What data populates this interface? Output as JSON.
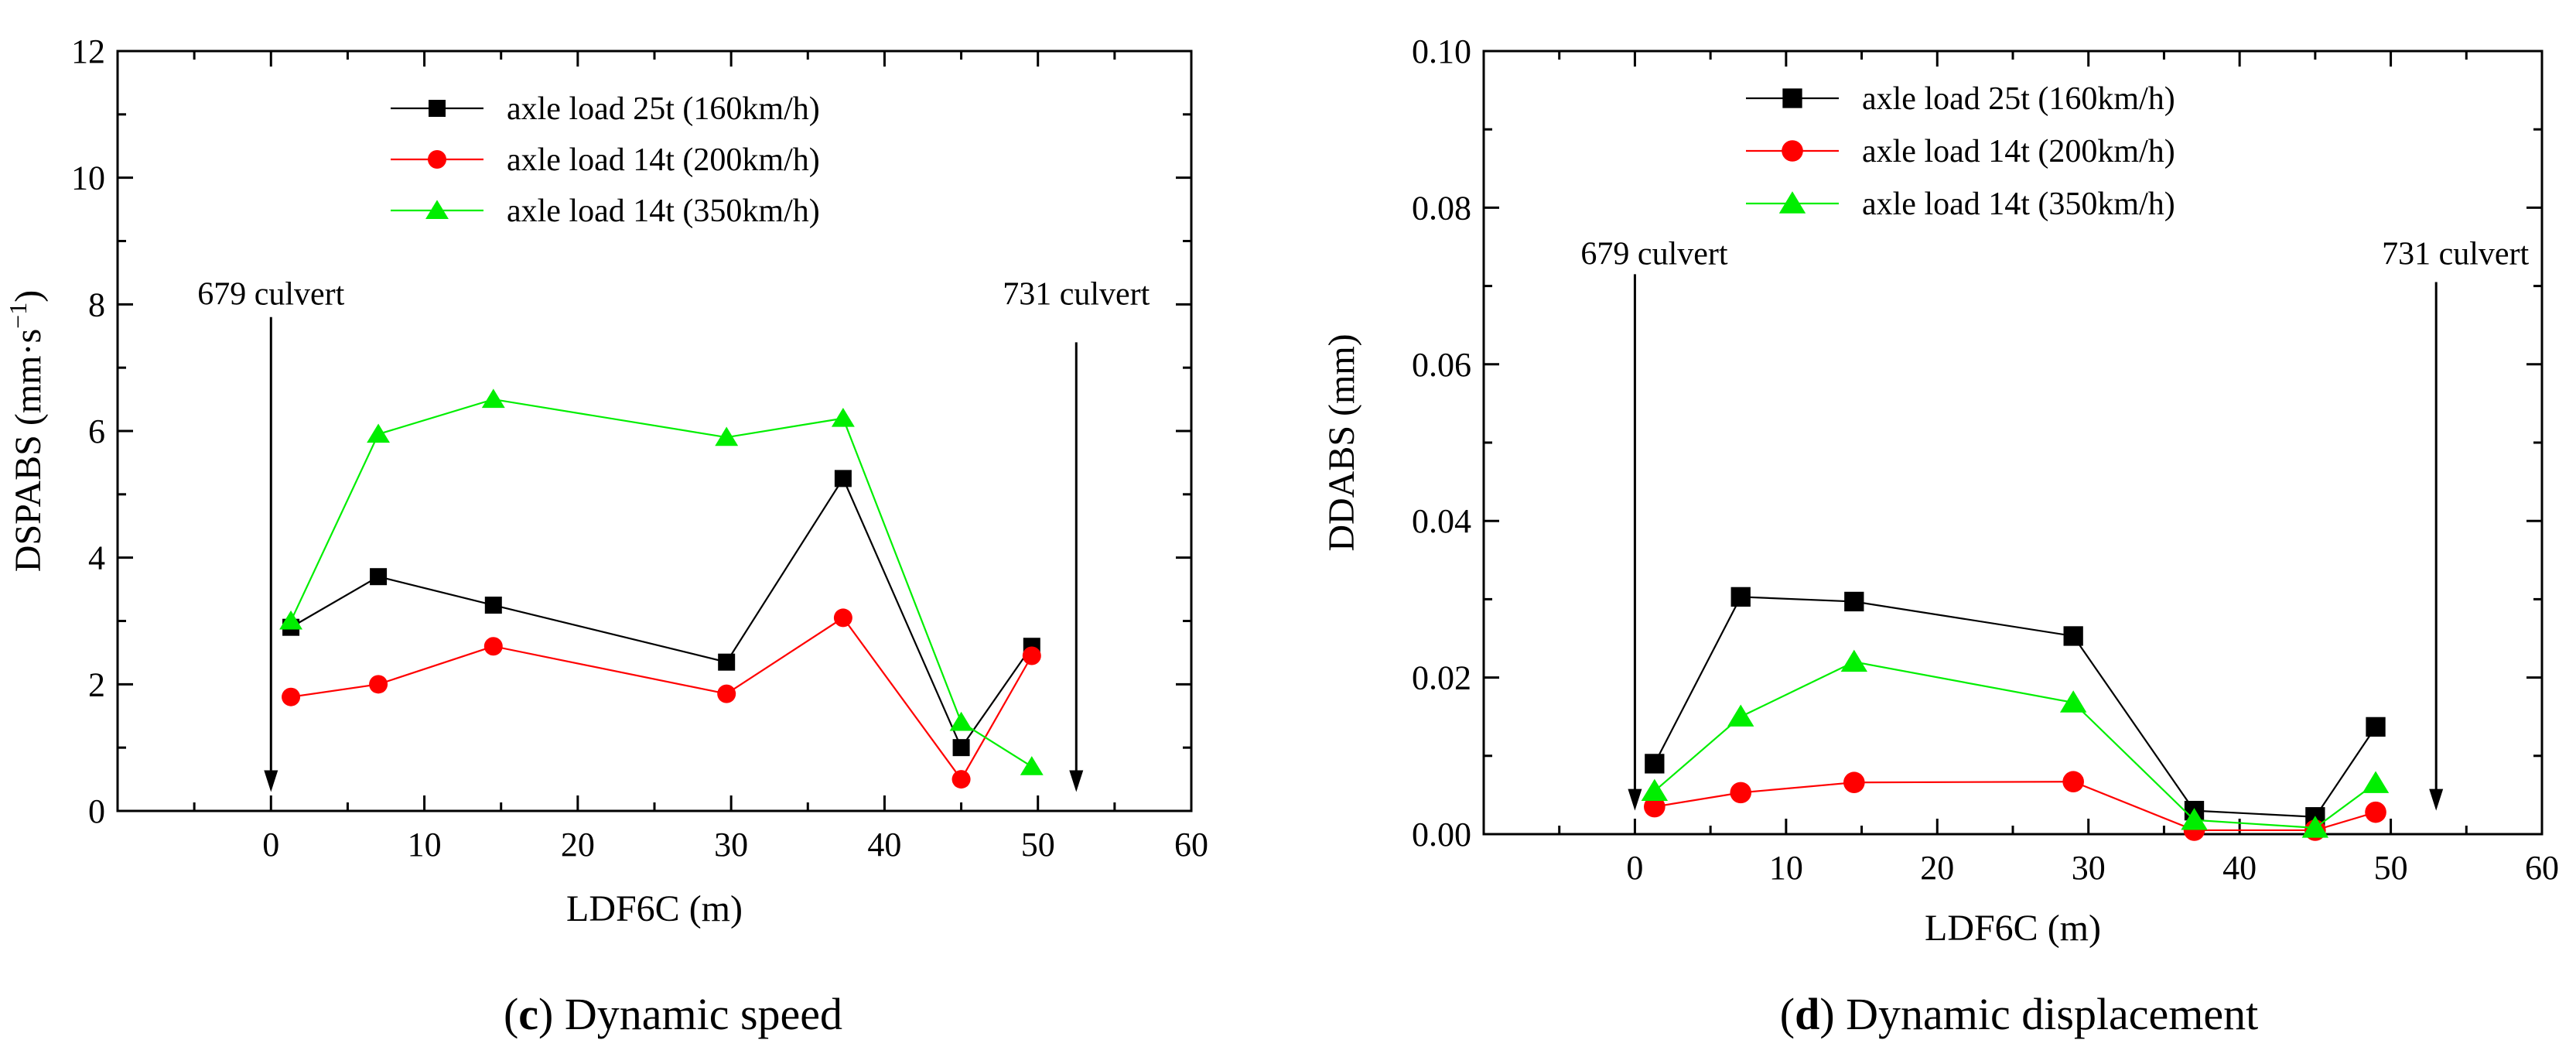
{
  "chart_data": [
    {
      "type": "line",
      "panel_letter": "c",
      "caption_text": " Dynamic speed",
      "xlabel": "LDF6C (m)",
      "ylabel_main": "DSPABS (mm·s",
      "ylabel_sup": "−1",
      "ylabel_close": ")",
      "xlim": [
        -10,
        60
      ],
      "ylim": [
        0,
        12
      ],
      "xticks": [
        0,
        10,
        20,
        30,
        40,
        50,
        60
      ],
      "yticks": [
        0,
        2,
        4,
        6,
        8,
        10,
        12
      ],
      "ytick_labels": [
        "0",
        "2",
        "4",
        "6",
        "8",
        "10",
        "12"
      ],
      "series": [
        {
          "name": "axle load 25t (160km/h)",
          "color": "#000000",
          "marker": "square",
          "x": [
            1.3,
            7,
            14.5,
            29.7,
            37.3,
            45,
            49.6
          ],
          "y": [
            2.9,
            3.7,
            3.25,
            2.35,
            5.25,
            1.0,
            2.6
          ]
        },
        {
          "name": "axle load 14t (200km/h)",
          "color": "#ff0000",
          "marker": "circle",
          "x": [
            1.3,
            7,
            14.5,
            29.7,
            37.3,
            45,
            49.6
          ],
          "y": [
            1.8,
            2.0,
            2.6,
            1.85,
            3.05,
            0.5,
            2.45
          ]
        },
        {
          "name": "axle load 14t (350km/h)",
          "color": "#00ee00",
          "marker": "triangle",
          "x": [
            1.3,
            7,
            14.5,
            29.7,
            37.3,
            45,
            49.6
          ],
          "y": [
            3.0,
            5.95,
            6.5,
            5.9,
            6.2,
            1.4,
            0.7
          ]
        }
      ],
      "annotations": [
        {
          "text": "679 culvert",
          "x": 0,
          "label_y": 7.9,
          "arrow_from": 7.8,
          "arrow_to": 0.3,
          "anchor": "middle"
        },
        {
          "text": "731 culvert",
          "x": 52.5,
          "label_y": 7.9,
          "arrow_from": 7.4,
          "arrow_to": 0.3,
          "anchor": "middle"
        }
      ]
    },
    {
      "type": "line",
      "panel_letter": "d",
      "caption_text": " Dynamic displacement",
      "xlabel": "LDF6C (m)",
      "ylabel_main": "DDABS (mm)",
      "ylabel_sup": "",
      "ylabel_close": "",
      "xlim": [
        -10,
        60
      ],
      "ylim": [
        0,
        0.1
      ],
      "xticks": [
        0,
        10,
        20,
        30,
        40,
        50,
        60
      ],
      "yticks": [
        0,
        0.02,
        0.04,
        0.06,
        0.08,
        0.1
      ],
      "ytick_labels": [
        "0.00",
        "0.02",
        "0.04",
        "0.06",
        "0.08",
        "0.10"
      ],
      "series": [
        {
          "name": "axle load 25t (160km/h)",
          "color": "#000000",
          "marker": "square",
          "x": [
            1.3,
            7,
            14.5,
            29,
            37,
            45,
            49
          ],
          "y": [
            0.009,
            0.0303,
            0.0297,
            0.0253,
            0.003,
            0.0022,
            0.0137
          ]
        },
        {
          "name": "axle load 14t (200km/h)",
          "color": "#ff0000",
          "marker": "circle",
          "x": [
            1.3,
            7,
            14.5,
            29,
            37,
            45,
            49
          ],
          "y": [
            0.0035,
            0.0053,
            0.0066,
            0.0067,
            0.0005,
            0.0005,
            0.0028
          ]
        },
        {
          "name": "axle load 14t (350km/h)",
          "color": "#00ee00",
          "marker": "triangle",
          "x": [
            1.3,
            7,
            14.5,
            29,
            37,
            45,
            49
          ],
          "y": [
            0.0055,
            0.015,
            0.022,
            0.0168,
            0.0018,
            0.0008,
            0.0065
          ]
        }
      ],
      "annotations": [
        {
          "text": "679 culvert",
          "x": 0,
          "label_y": 0.072,
          "arrow_from": 0.0715,
          "arrow_to": 0.003,
          "anchor": "start"
        },
        {
          "text": "731 culvert",
          "x": 53,
          "label_y": 0.072,
          "arrow_from": 0.0705,
          "arrow_to": 0.003,
          "anchor": "end"
        }
      ]
    }
  ]
}
